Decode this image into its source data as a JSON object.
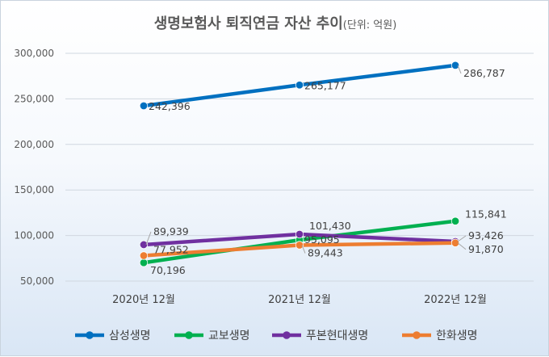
{
  "chart_data": {
    "type": "line",
    "title": "생명보험사 퇴직연금 자산 추이",
    "subtitle": "(단위: 억원)",
    "categories": [
      "2020년 12월",
      "2021년 12월",
      "2022년 12월"
    ],
    "ylim": [
      50000,
      300000
    ],
    "yticks": [
      50000,
      100000,
      150000,
      200000,
      250000,
      300000
    ],
    "ytick_labels": [
      "50,000",
      "100,000",
      "150,000",
      "200,000",
      "250,000",
      "300,000"
    ],
    "grid": true,
    "legend_position": "bottom",
    "series": [
      {
        "name": "삼성생명",
        "color": "#0070c0",
        "values": [
          242396,
          265177,
          286787
        ],
        "labels": [
          "242,396",
          "265,177",
          "286,787"
        ]
      },
      {
        "name": "교보생명",
        "color": "#00b050",
        "values": [
          70196,
          95095,
          115841
        ],
        "labels": [
          "70,196",
          "95,095",
          "115,841"
        ]
      },
      {
        "name": "푸본현대생명",
        "color": "#7030a0",
        "values": [
          89939,
          101430,
          93426
        ],
        "labels": [
          "89,939",
          "101,430",
          "93,426"
        ]
      },
      {
        "name": "한화생명",
        "color": "#ed7d31",
        "values": [
          77952,
          89443,
          91870
        ],
        "labels": [
          "77,952",
          "89,443",
          "91,870"
        ]
      }
    ]
  }
}
